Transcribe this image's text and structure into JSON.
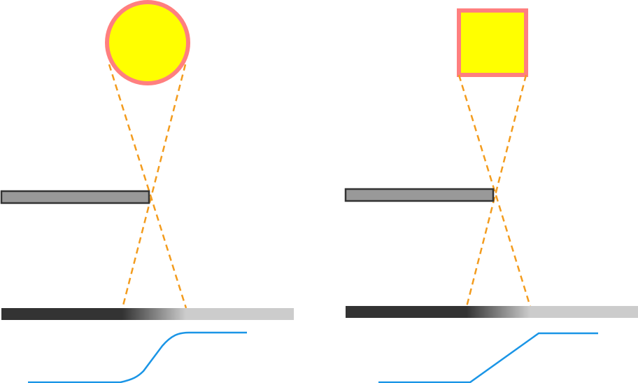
{
  "colors": {
    "source_fill": "#ffff00",
    "source_stroke": "#ff7f7f",
    "ray": "#f39c1e",
    "edge_fill": "#999999",
    "edge_stroke": "#333333",
    "screen_dark": "#333333",
    "screen_light": "#cccccc",
    "profile": "#1a95e6"
  },
  "panels": [
    {
      "id": "circle",
      "source_shape": "circle",
      "profile_shape": "smooth-sigmoid"
    },
    {
      "id": "square",
      "source_shape": "square",
      "profile_shape": "linear-ramp"
    }
  ]
}
